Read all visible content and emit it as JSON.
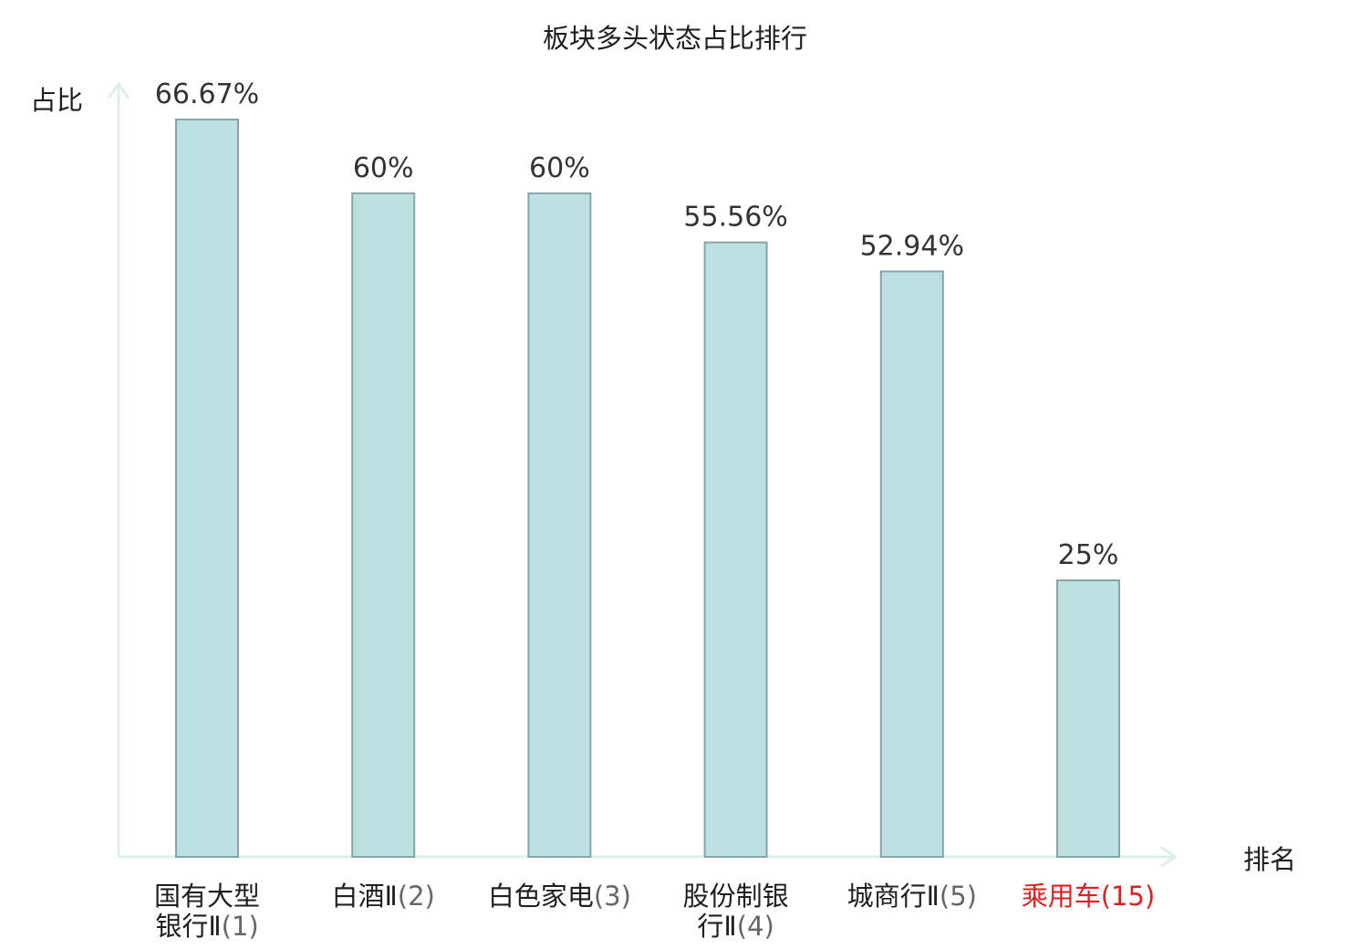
{
  "chart_data": {
    "type": "bar",
    "title": "板块多头状态占比排行",
    "ylabel": "占比",
    "xlabel": "排名",
    "ylim": [
      0,
      72
    ],
    "grid": false,
    "legend": "none",
    "categories": [
      {
        "name": "国有大型银行Ⅱ",
        "rank": "(1)",
        "lines": [
          "国有大型",
          "银行Ⅱ(1)"
        ],
        "highlight": false
      },
      {
        "name": "白酒Ⅱ",
        "rank": "(2)",
        "lines": [
          "白酒Ⅱ(2)"
        ],
        "highlight": false
      },
      {
        "name": "白色家电",
        "rank": "(3)",
        "lines": [
          "白色家电(3)"
        ],
        "highlight": false
      },
      {
        "name": "股份制银行Ⅱ",
        "rank": "(4)",
        "lines": [
          "股份制银",
          "行Ⅱ(4)"
        ],
        "highlight": false
      },
      {
        "name": "城商行Ⅱ",
        "rank": "(5)",
        "lines": [
          "城商行Ⅱ(5)"
        ],
        "highlight": false
      },
      {
        "name": "乘用车",
        "rank": "(15)",
        "lines": [
          "乘用车(15)"
        ],
        "highlight": true
      }
    ],
    "values": [
      66.67,
      60,
      60,
      55.56,
      52.94,
      25
    ],
    "value_labels": [
      "66.67%",
      "60%",
      "60%",
      "55.56%",
      "52.94%",
      "25%"
    ]
  },
  "colors": {
    "bar_fill": "#bde0e3",
    "bar_stroke": "#87a4a6",
    "axis": "#dcefec",
    "text": "#1f1f1f",
    "value_text": "#333333",
    "rank_text": "#666666",
    "highlight": "#e02020"
  }
}
